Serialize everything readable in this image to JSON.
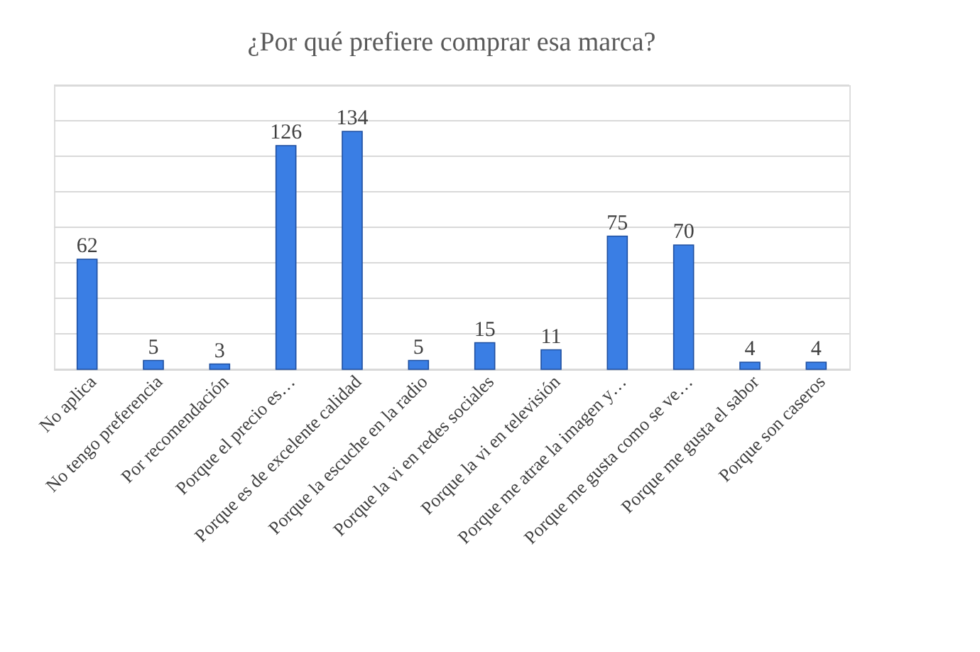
{
  "chart_data": {
    "type": "bar",
    "title": "¿Por qué prefiere comprar esa marca?",
    "categories": [
      "No aplica",
      "No tengo preferencia",
      "Por recomendación",
      "Porque el precio es…",
      "Porque es de excelente calidad",
      "Porque la escuche en la radio",
      "Porque la vi en redes sociales",
      "Porque la vi en televisión",
      "Porque me atrae la imagen y…",
      "Porque me gusta como se ve…",
      "Porque me gusta el sabor",
      "Porque son caseros"
    ],
    "values": [
      62,
      5,
      3,
      126,
      134,
      5,
      15,
      11,
      75,
      70,
      4,
      4
    ],
    "color": "#3a7ee4",
    "ylim": [
      0,
      160
    ],
    "yticks": [
      {
        "value": 0,
        "label": null
      },
      {
        "value": 20,
        "label": null
      },
      {
        "value": 40,
        "label": null
      },
      {
        "value": 60,
        "label": null
      },
      {
        "value": 80,
        "label": null
      },
      {
        "value": 100,
        "label": null
      },
      {
        "value": 120,
        "label": null
      },
      {
        "value": 140,
        "label": null
      },
      {
        "value": 160,
        "label": null
      }
    ],
    "tick_labels": "x",
    "grid": "y",
    "data_labels": true
  }
}
